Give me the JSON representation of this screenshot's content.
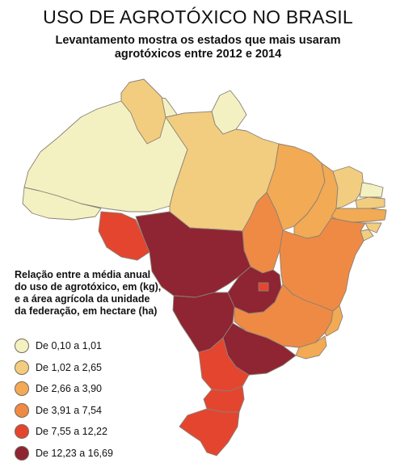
{
  "header": {
    "title": "USO DE AGROTÓXICO NO BRASIL",
    "subtitle": "Levantamento mostra os estados que mais usaram agrotóxicos entre 2012 e 2014"
  },
  "legend": {
    "title": "Relação entre a média anual do uso de agrotóxico, em (kg), e a área agrícola da unidade da federação, em hectare (ha)",
    "items": [
      {
        "label": "De 0,10 a 1,01",
        "color": "#f3f1c2"
      },
      {
        "label": "De 1,02 a 2,65",
        "color": "#f2cd80"
      },
      {
        "label": "De 2,66 a 3,90",
        "color": "#f2aa55"
      },
      {
        "label": "De 3,91 a 7,54",
        "color": "#ef8a45"
      },
      {
        "label": "De 7,55 a 12,22",
        "color": "#e4452f"
      },
      {
        "label": "De 12,23 a 16,69",
        "color": "#8f2432"
      }
    ]
  },
  "colors": {
    "border": "#8a8175"
  }
}
